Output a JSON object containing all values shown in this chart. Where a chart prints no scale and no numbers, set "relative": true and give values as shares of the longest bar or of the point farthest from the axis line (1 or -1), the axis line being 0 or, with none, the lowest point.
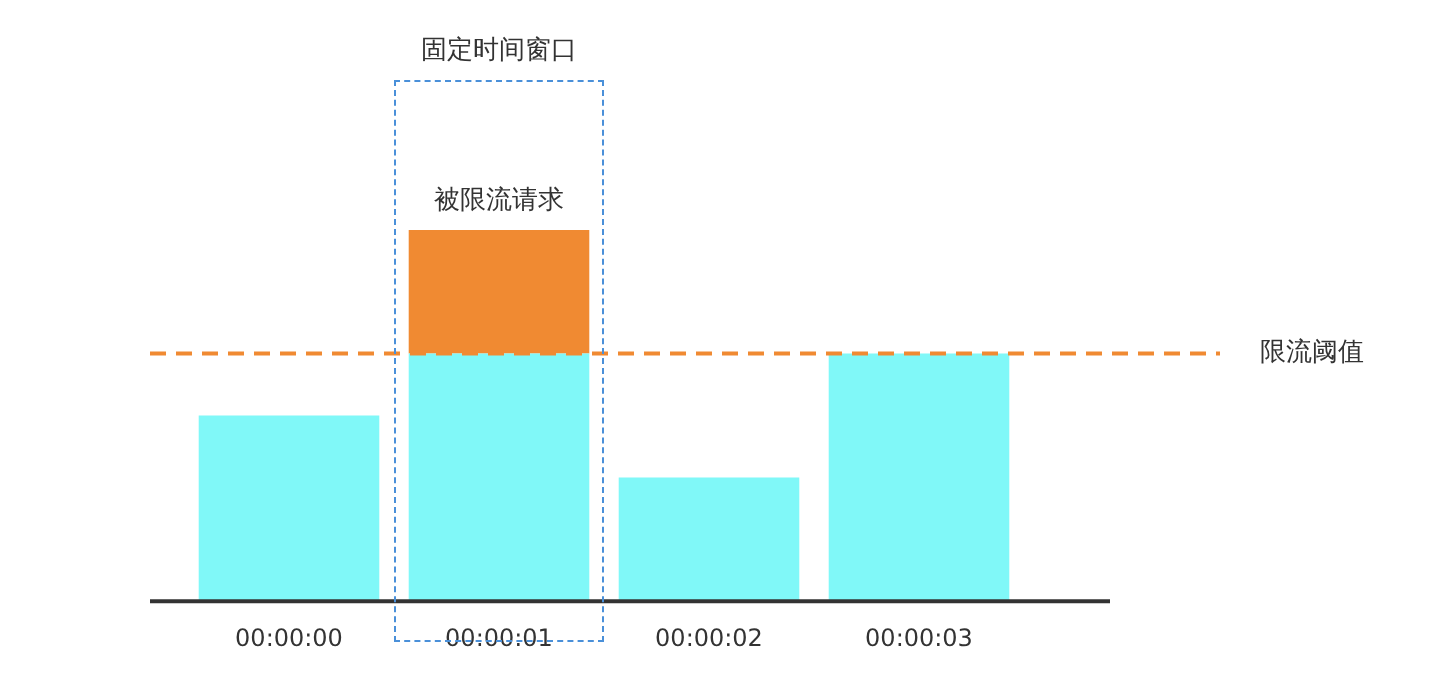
{
  "chart_data": {
    "type": "bar",
    "stacked": true,
    "relative": true,
    "categories": [
      "00:00:00",
      "00:00:01",
      "00:00:02",
      "00:00:03"
    ],
    "series": [
      {
        "color": "#80f8f8",
        "values": [
          0.5,
          0.667,
          0.333,
          0.667
        ]
      },
      {
        "color": "#f08a32",
        "values": [
          0,
          0.333,
          0,
          0
        ]
      }
    ],
    "ref_lines": [
      {
        "axis": "y",
        "value": 0.667,
        "label": "限流阈值",
        "color": "#f08a32",
        "line_style": "dashed"
      }
    ],
    "annotations": [
      "固定时间窗口",
      {
        "text": "被限流请求",
        "x": "00:00:01",
        "y": 1
      }
    ],
    "grid": false,
    "legend": false
  }
}
